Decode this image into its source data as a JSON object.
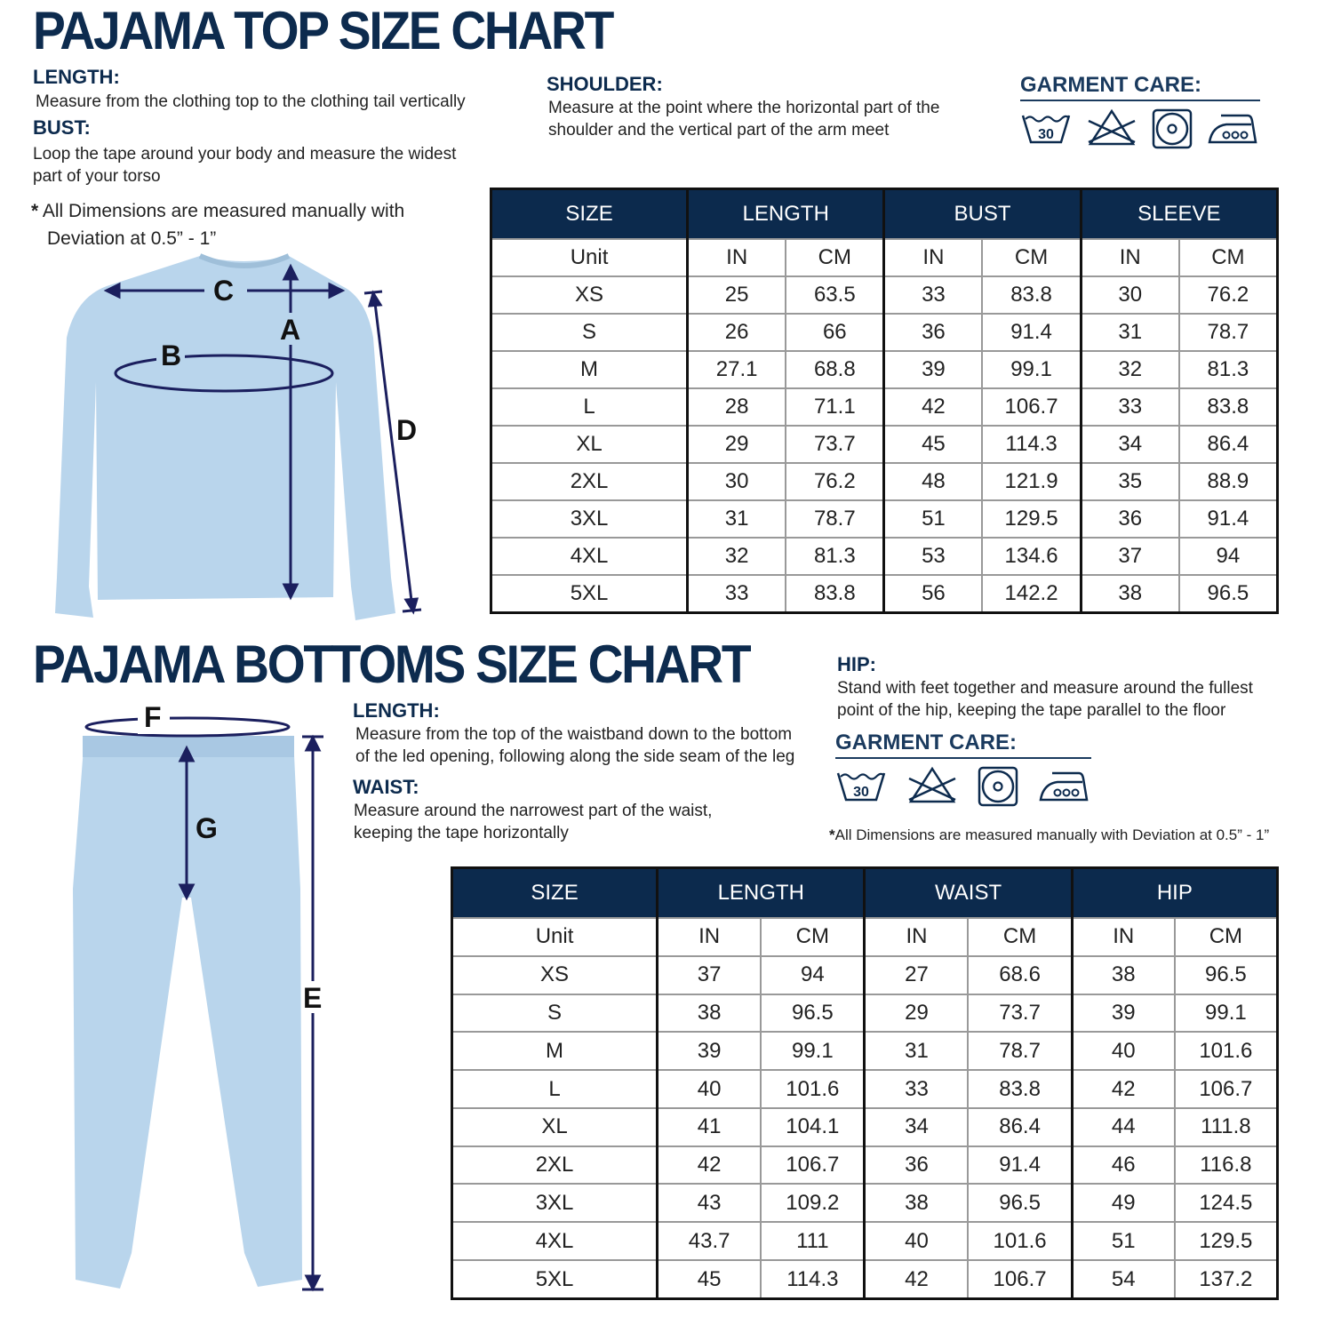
{
  "top": {
    "title": "PAJAMA TOP SIZE CHART",
    "length": {
      "label": "LENGTH:",
      "desc": "Measure from the clothing top to the clothing tail vertically"
    },
    "bust": {
      "label": "BUST:",
      "desc1": "Loop the tape around your body and measure the widest",
      "desc2": "part of your torso"
    },
    "shoulder": {
      "label": "SHOULDER:",
      "desc1": "Measure at the point where the horizontal part of the",
      "desc2": "shoulder and the vertical part of the arm meet"
    },
    "note1": "All Dimensions are measured manually with",
    "note2": "Deviation at 0.5” - 1”",
    "note_mark": "*",
    "care": {
      "label": "GARMENT CARE:",
      "icons": [
        "wash-30-icon",
        "no-bleach-icon",
        "tumble-dry-icon",
        "iron-high-icon"
      ],
      "wash_temp": "30"
    },
    "diagram_letters": {
      "a": "A",
      "b": "B",
      "c": "C",
      "d": "D"
    },
    "table": {
      "headers": [
        "SIZE",
        "LENGTH",
        "BUST",
        "SLEEVE"
      ],
      "unit_row": [
        "Unit",
        "IN",
        "CM",
        "IN",
        "CM",
        "IN",
        "CM"
      ],
      "rows": [
        [
          "XS",
          "25",
          "63.5",
          "33",
          "83.8",
          "30",
          "76.2"
        ],
        [
          "S",
          "26",
          "66",
          "36",
          "91.4",
          "31",
          "78.7"
        ],
        [
          "M",
          "27.1",
          "68.8",
          "39",
          "99.1",
          "32",
          "81.3"
        ],
        [
          "L",
          "28",
          "71.1",
          "42",
          "106.7",
          "33",
          "83.8"
        ],
        [
          "XL",
          "29",
          "73.7",
          "45",
          "114.3",
          "34",
          "86.4"
        ],
        [
          "2XL",
          "30",
          "76.2",
          "48",
          "121.9",
          "35",
          "88.9"
        ],
        [
          "3XL",
          "31",
          "78.7",
          "51",
          "129.5",
          "36",
          "91.4"
        ],
        [
          "4XL",
          "32",
          "81.3",
          "53",
          "134.6",
          "37",
          "94"
        ],
        [
          "5XL",
          "33",
          "83.8",
          "56",
          "142.2",
          "38",
          "96.5"
        ]
      ]
    }
  },
  "bottom": {
    "title": "PAJAMA BOTTOMS SIZE CHART",
    "length": {
      "label": "LENGTH:",
      "desc1": "Measure from the top of the waistband down to the bottom",
      "desc2": "of the led opening, following along the side seam of the leg"
    },
    "waist": {
      "label": "WAIST:",
      "desc1": "Measure around the narrowest part of the waist,",
      "desc2": "keeping the tape horizontally"
    },
    "hip": {
      "label": "HIP:",
      "desc1": "Stand with feet together and measure around the fullest",
      "desc2": "point of the hip, keeping the tape parallel to the floor"
    },
    "note": "All Dimensions are measured manually with Deviation at 0.5” - 1”",
    "note_mark": "*",
    "care": {
      "label": "GARMENT CARE:",
      "icons": [
        "wash-30-icon",
        "no-bleach-icon",
        "tumble-dry-icon",
        "iron-high-icon"
      ],
      "wash_temp": "30"
    },
    "diagram_letters": {
      "e": "E",
      "f": "F",
      "g": "G"
    },
    "table": {
      "headers": [
        "SIZE",
        "LENGTH",
        "WAIST",
        "HIP"
      ],
      "unit_row": [
        "Unit",
        "IN",
        "CM",
        "IN",
        "CM",
        "IN",
        "CM"
      ],
      "rows": [
        [
          "XS",
          "37",
          "94",
          "27",
          "68.6",
          "38",
          "96.5"
        ],
        [
          "S",
          "38",
          "96.5",
          "29",
          "73.7",
          "39",
          "99.1"
        ],
        [
          "M",
          "39",
          "99.1",
          "31",
          "78.7",
          "40",
          "101.6"
        ],
        [
          "L",
          "40",
          "101.6",
          "33",
          "83.8",
          "42",
          "106.7"
        ],
        [
          "XL",
          "41",
          "104.1",
          "34",
          "86.4",
          "44",
          "111.8"
        ],
        [
          "2XL",
          "42",
          "106.7",
          "36",
          "91.4",
          "46",
          "116.8"
        ],
        [
          "3XL",
          "43",
          "109.2",
          "38",
          "96.5",
          "49",
          "124.5"
        ],
        [
          "4XL",
          "43.7",
          "111",
          "40",
          "101.6",
          "51",
          "129.5"
        ],
        [
          "5XL",
          "45",
          "114.3",
          "42",
          "106.7",
          "54",
          "137.2"
        ]
      ]
    }
  },
  "colors": {
    "navy": "#0c2a4d",
    "garment": "#b9d5ec",
    "arrow": "#1b1f5e"
  }
}
